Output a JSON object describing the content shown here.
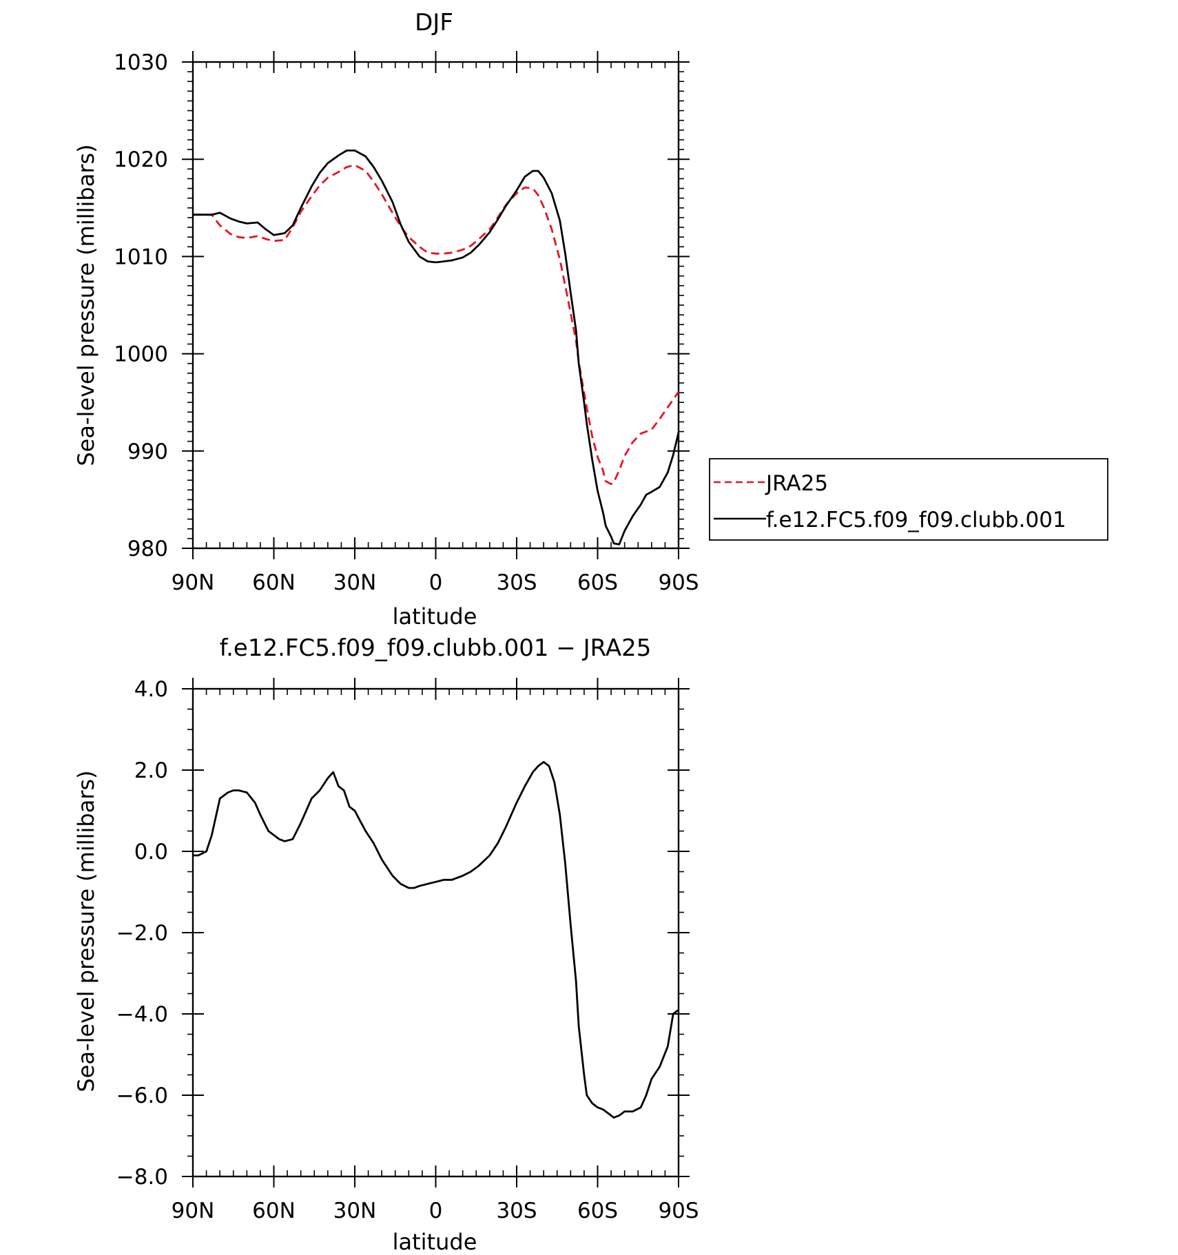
{
  "chart_data": [
    {
      "type": "line",
      "title": "DJF",
      "xlabel": "latitude",
      "ylabel": "Sea-level pressure (millibars)",
      "xlim": [
        -90,
        90
      ],
      "xdirection": "north-to-south",
      "x_ticks": [
        {
          "value": -90,
          "label": "90N"
        },
        {
          "value": -60,
          "label": "60N"
        },
        {
          "value": -30,
          "label": "30N"
        },
        {
          "value": 0,
          "label": "0"
        },
        {
          "value": 30,
          "label": "30S"
        },
        {
          "value": 60,
          "label": "60S"
        },
        {
          "value": 90,
          "label": "90S"
        }
      ],
      "ylim": [
        980,
        1030
      ],
      "y_ticks": [
        {
          "value": 980,
          "label": "980"
        },
        {
          "value": 990,
          "label": "990"
        },
        {
          "value": 1000,
          "label": "1000"
        },
        {
          "value": 1010,
          "label": "1010"
        },
        {
          "value": 1020,
          "label": "1020"
        },
        {
          "value": 1030,
          "label": "1030"
        }
      ],
      "grid": false,
      "legend": "right",
      "series": [
        {
          "name": "JRA25",
          "color": "#e8141e",
          "dash": "dashed",
          "x": [
            -90,
            -86,
            -83,
            -80,
            -76,
            -73,
            -70,
            -66,
            -63,
            -60,
            -56,
            -53,
            -50,
            -46,
            -43,
            -40,
            -36,
            -33,
            -30,
            -26,
            -23,
            -20,
            -16,
            -13,
            -10,
            -6,
            -3,
            0,
            3,
            6,
            10,
            13,
            16,
            20,
            23,
            26,
            30,
            33,
            36,
            38,
            40,
            43,
            46,
            48,
            50,
            52,
            53,
            55,
            56,
            58,
            60,
            62,
            63,
            65,
            66,
            68,
            70,
            73,
            76,
            78,
            80,
            83,
            86,
            88,
            90
          ],
          "y": [
            1014.3,
            1014.3,
            1014.3,
            1013.2,
            1012.3,
            1012.0,
            1011.9,
            1012.1,
            1011.8,
            1011.6,
            1011.7,
            1013.0,
            1014.6,
            1016.2,
            1017.3,
            1018.1,
            1018.7,
            1019.2,
            1019.4,
            1018.8,
            1017.7,
            1016.4,
            1014.5,
            1013.1,
            1012.0,
            1011.0,
            1010.4,
            1010.3,
            1010.3,
            1010.4,
            1010.7,
            1011.1,
            1011.8,
            1012.8,
            1014.0,
            1015.3,
            1016.5,
            1017.1,
            1017.0,
            1016.3,
            1015.1,
            1012.8,
            1009.7,
            1007.0,
            1004.2,
            1001.3,
            999.2,
            996.0,
            994.4,
            991.5,
            989.4,
            988.0,
            986.9,
            986.6,
            986.8,
            988.0,
            989.5,
            990.9,
            991.8,
            992.0,
            992.2,
            993.3,
            994.5,
            995.3,
            996.1
          ]
        },
        {
          "name": "f.e12.FC5.f09_f09.clubb.001",
          "color": "#000000",
          "dash": "solid",
          "x": [
            -90,
            -86,
            -83,
            -80,
            -76,
            -73,
            -70,
            -66,
            -63,
            -60,
            -56,
            -53,
            -50,
            -46,
            -43,
            -40,
            -36,
            -33,
            -30,
            -26,
            -23,
            -20,
            -16,
            -13,
            -10,
            -6,
            -3,
            0,
            3,
            6,
            10,
            13,
            16,
            20,
            23,
            26,
            30,
            33,
            36,
            38,
            40,
            43,
            46,
            48,
            50,
            52,
            53,
            55,
            56,
            58,
            60,
            62,
            63,
            65,
            66,
            68,
            70,
            73,
            76,
            78,
            80,
            83,
            86,
            88,
            90
          ],
          "y": [
            1014.3,
            1014.3,
            1014.3,
            1014.5,
            1013.9,
            1013.6,
            1013.4,
            1013.5,
            1012.8,
            1012.2,
            1012.4,
            1013.2,
            1015.0,
            1017.2,
            1018.6,
            1019.6,
            1020.4,
            1020.9,
            1020.9,
            1020.3,
            1019.2,
            1017.8,
            1015.6,
            1013.3,
            1011.5,
            1010.0,
            1009.5,
            1009.4,
            1009.5,
            1009.6,
            1009.9,
            1010.4,
            1011.2,
            1012.5,
            1013.8,
            1015.2,
            1016.8,
            1018.2,
            1018.8,
            1018.8,
            1018.1,
            1016.5,
            1013.7,
            1010.3,
            1006.3,
            1002.4,
            999.0,
            995.0,
            992.8,
            989.1,
            985.9,
            983.7,
            982.3,
            981.2,
            980.5,
            980.4,
            981.8,
            983.3,
            984.5,
            985.5,
            985.8,
            986.3,
            987.8,
            989.6,
            991.9
          ]
        }
      ]
    },
    {
      "type": "line",
      "title": "f.e12.FC5.f09_f09.clubb.001 − JRA25",
      "xlabel": "latitude",
      "ylabel": "Sea-level pressure (millibars)",
      "xlim": [
        -90,
        90
      ],
      "xdirection": "north-to-south",
      "x_ticks": [
        {
          "value": -90,
          "label": "90N"
        },
        {
          "value": -60,
          "label": "60N"
        },
        {
          "value": -30,
          "label": "30N"
        },
        {
          "value": 0,
          "label": "0"
        },
        {
          "value": 30,
          "label": "30S"
        },
        {
          "value": 60,
          "label": "60S"
        },
        {
          "value": 90,
          "label": "90S"
        }
      ],
      "ylim": [
        -8,
        4
      ],
      "y_ticks": [
        {
          "value": -8,
          "label": "−8.0"
        },
        {
          "value": -6,
          "label": "−6.0"
        },
        {
          "value": -4,
          "label": "−4.0"
        },
        {
          "value": -2,
          "label": "−2.0"
        },
        {
          "value": 0,
          "label": "0.0"
        },
        {
          "value": 2,
          "label": "2.0"
        },
        {
          "value": 4,
          "label": "4.0"
        }
      ],
      "grid": false,
      "series": [
        {
          "color": "#000000",
          "x": [
            -90,
            -88,
            -85,
            -83,
            -80,
            -77,
            -75,
            -73,
            -70,
            -67,
            -65,
            -62,
            -60,
            -58,
            -56,
            -53,
            -50,
            -48,
            -46,
            -43,
            -40,
            -38,
            -36,
            -34,
            -32,
            -30,
            -28,
            -26,
            -23,
            -20,
            -16,
            -13,
            -10,
            -8,
            -6,
            -3,
            0,
            3,
            6,
            8,
            10,
            13,
            16,
            20,
            23,
            26,
            30,
            33,
            36,
            38,
            40,
            42,
            44,
            46,
            48,
            50,
            52,
            53,
            55,
            56,
            58,
            60,
            62,
            63,
            65,
            66,
            68,
            70,
            73,
            76,
            78,
            80,
            83,
            86,
            88,
            90
          ],
          "y": [
            -0.1,
            -0.1,
            0.0,
            0.4,
            1.3,
            1.45,
            1.5,
            1.5,
            1.45,
            1.2,
            0.9,
            0.5,
            0.4,
            0.3,
            0.25,
            0.3,
            0.7,
            1.0,
            1.3,
            1.5,
            1.8,
            1.95,
            1.6,
            1.5,
            1.1,
            1.0,
            0.75,
            0.5,
            0.2,
            -0.2,
            -0.6,
            -0.8,
            -0.9,
            -0.9,
            -0.85,
            -0.8,
            -0.75,
            -0.7,
            -0.7,
            -0.65,
            -0.6,
            -0.5,
            -0.35,
            -0.1,
            0.2,
            0.6,
            1.2,
            1.6,
            1.95,
            2.1,
            2.2,
            2.1,
            1.7,
            0.9,
            -0.3,
            -1.8,
            -3.2,
            -4.3,
            -5.5,
            -6.0,
            -6.2,
            -6.3,
            -6.35,
            -6.4,
            -6.5,
            -6.55,
            -6.5,
            -6.4,
            -6.4,
            -6.3,
            -6.0,
            -5.6,
            -5.3,
            -4.8,
            -4.0,
            -3.9
          ]
        }
      ]
    }
  ]
}
